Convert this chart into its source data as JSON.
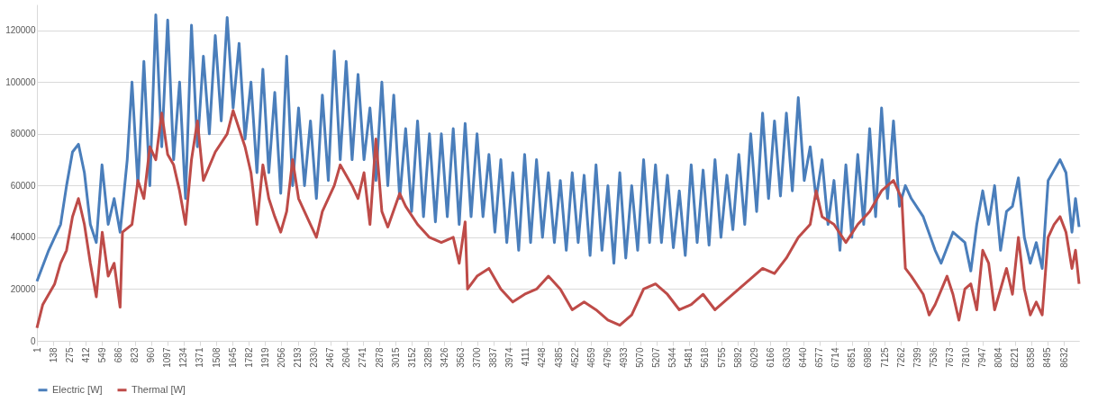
{
  "chart_data": {
    "type": "line",
    "xlim": [
      1,
      8760
    ],
    "ylim": [
      0,
      130000
    ],
    "xticks": [
      1,
      138,
      275,
      412,
      549,
      686,
      823,
      960,
      1097,
      1234,
      1371,
      1508,
      1645,
      1782,
      1919,
      2056,
      2193,
      2330,
      2467,
      2604,
      2741,
      2878,
      3015,
      3152,
      3289,
      3426,
      3563,
      3700,
      3837,
      3974,
      4111,
      4248,
      4385,
      4522,
      4659,
      4796,
      4933,
      5070,
      5207,
      5344,
      5481,
      5618,
      5755,
      5892,
      6029,
      6166,
      6303,
      6440,
      6577,
      6714,
      6851,
      6988,
      7125,
      7262,
      7399,
      7536,
      7673,
      7810,
      7947,
      8084,
      8221,
      8358,
      8495,
      8632
    ],
    "yticks": [
      0,
      20000,
      40000,
      60000,
      80000,
      100000,
      120000
    ],
    "grid": "y",
    "legend": "bottom",
    "marker": "none",
    "line_style": "solid",
    "series": [
      {
        "name": "Electric [W]",
        "color": "#4a7ebb",
        "x": [
          1,
          100,
          200,
          250,
          300,
          350,
          400,
          450,
          500,
          548,
          600,
          650,
          700,
          760,
          800,
          850,
          900,
          950,
          1000,
          1050,
          1100,
          1150,
          1200,
          1250,
          1300,
          1350,
          1400,
          1450,
          1500,
          1550,
          1600,
          1650,
          1700,
          1750,
          1800,
          1850,
          1900,
          1950,
          2000,
          2050,
          2100,
          2150,
          2200,
          2250,
          2300,
          2350,
          2400,
          2450,
          2500,
          2550,
          2600,
          2650,
          2700,
          2750,
          2800,
          2850,
          2900,
          2950,
          3000,
          3050,
          3100,
          3150,
          3200,
          3250,
          3300,
          3350,
          3400,
          3450,
          3500,
          3550,
          3600,
          3650,
          3700,
          3750,
          3800,
          3850,
          3900,
          3950,
          4000,
          4050,
          4100,
          4150,
          4200,
          4250,
          4300,
          4350,
          4400,
          4450,
          4500,
          4550,
          4600,
          4650,
          4700,
          4750,
          4800,
          4850,
          4900,
          4950,
          5000,
          5050,
          5100,
          5150,
          5200,
          5250,
          5300,
          5350,
          5400,
          5450,
          5500,
          5550,
          5600,
          5650,
          5700,
          5750,
          5800,
          5850,
          5900,
          5950,
          6000,
          6050,
          6100,
          6150,
          6200,
          6250,
          6300,
          6350,
          6400,
          6450,
          6500,
          6550,
          6600,
          6650,
          6700,
          6750,
          6800,
          6850,
          6900,
          6950,
          7000,
          7050,
          7100,
          7150,
          7200,
          7250,
          7300,
          7350,
          7450,
          7550,
          7600,
          7700,
          7800,
          7850,
          7900,
          7950,
          8000,
          8050,
          8100,
          8150,
          8200,
          8250,
          8300,
          8350,
          8400,
          8450,
          8500,
          8550,
          8600,
          8650,
          8700,
          8730,
          8760
        ],
        "values": [
          23000,
          35000,
          45000,
          60000,
          73000,
          76000,
          65000,
          45000,
          38000,
          68000,
          45000,
          55000,
          42000,
          70000,
          100000,
          60000,
          108000,
          60000,
          126000,
          75000,
          124000,
          70000,
          100000,
          55000,
          122000,
          75000,
          110000,
          80000,
          118000,
          85000,
          125000,
          90000,
          115000,
          78000,
          100000,
          65000,
          105000,
          65000,
          96000,
          57000,
          110000,
          60000,
          90000,
          60000,
          85000,
          55000,
          95000,
          62000,
          112000,
          70000,
          108000,
          70000,
          103000,
          70000,
          90000,
          62000,
          100000,
          60000,
          95000,
          55000,
          82000,
          50000,
          85000,
          48000,
          80000,
          46000,
          80000,
          48000,
          82000,
          45000,
          84000,
          48000,
          80000,
          48000,
          72000,
          42000,
          70000,
          38000,
          65000,
          35000,
          72000,
          38000,
          70000,
          40000,
          65000,
          38000,
          62000,
          35000,
          65000,
          38000,
          64000,
          33000,
          68000,
          35000,
          60000,
          30000,
          65000,
          32000,
          60000,
          35000,
          70000,
          38000,
          68000,
          38000,
          64000,
          36000,
          58000,
          33000,
          68000,
          38000,
          66000,
          37000,
          70000,
          40000,
          64000,
          43000,
          72000,
          45000,
          80000,
          50000,
          88000,
          55000,
          85000,
          56000,
          88000,
          58000,
          94000,
          62000,
          75000,
          55000,
          70000,
          45000,
          62000,
          35000,
          68000,
          40000,
          72000,
          45000,
          82000,
          48000,
          90000,
          55000,
          85000,
          52000,
          60000,
          55000,
          48000,
          35000,
          30000,
          42000,
          38000,
          27000,
          45000,
          58000,
          45000,
          60000,
          35000,
          50000,
          52000,
          63000,
          40000,
          30000,
          38000,
          28000,
          62000,
          66000,
          70000,
          65000,
          42000,
          55000,
          44000
        ]
      },
      {
        "name": "Thermal [W]",
        "color": "#be4b48",
        "x": [
          1,
          50,
          150,
          200,
          250,
          300,
          350,
          400,
          450,
          500,
          550,
          600,
          650,
          700,
          720,
          800,
          850,
          900,
          950,
          1000,
          1050,
          1100,
          1150,
          1200,
          1250,
          1300,
          1350,
          1400,
          1500,
          1600,
          1650,
          1750,
          1800,
          1850,
          1900,
          1950,
          2000,
          2050,
          2100,
          2150,
          2200,
          2300,
          2350,
          2400,
          2500,
          2550,
          2650,
          2700,
          2750,
          2800,
          2850,
          2900,
          2950,
          3050,
          3100,
          3200,
          3300,
          3400,
          3500,
          3550,
          3600,
          3620,
          3700,
          3800,
          3900,
          4000,
          4100,
          4200,
          4300,
          4400,
          4500,
          4600,
          4700,
          4800,
          4900,
          5000,
          5100,
          5200,
          5300,
          5400,
          5500,
          5600,
          5700,
          5800,
          5900,
          6000,
          6100,
          6200,
          6300,
          6400,
          6500,
          6550,
          6600,
          6700,
          6800,
          6900,
          7000,
          7100,
          7200,
          7270,
          7300,
          7350,
          7450,
          7500,
          7550,
          7650,
          7700,
          7750,
          7800,
          7850,
          7900,
          7950,
          8000,
          8050,
          8100,
          8150,
          8200,
          8250,
          8300,
          8350,
          8400,
          8450,
          8500,
          8550,
          8600,
          8650,
          8700,
          8730,
          8760
        ],
        "values": [
          5000,
          14000,
          22000,
          30000,
          35000,
          48000,
          55000,
          45000,
          30000,
          17000,
          42000,
          25000,
          30000,
          13000,
          42000,
          45000,
          62000,
          55000,
          75000,
          70000,
          88000,
          72000,
          68000,
          58000,
          45000,
          70000,
          85000,
          62000,
          73000,
          80000,
          89000,
          75000,
          65000,
          45000,
          68000,
          55000,
          48000,
          42000,
          50000,
          70000,
          55000,
          45000,
          40000,
          50000,
          60000,
          68000,
          60000,
          55000,
          65000,
          45000,
          78000,
          50000,
          44000,
          57000,
          52000,
          45000,
          40000,
          38000,
          40000,
          30000,
          46000,
          20000,
          25000,
          28000,
          20000,
          15000,
          18000,
          20000,
          25000,
          20000,
          12000,
          15000,
          12000,
          8000,
          6000,
          10000,
          20000,
          22000,
          18000,
          12000,
          14000,
          18000,
          12000,
          16000,
          20000,
          24000,
          28000,
          26000,
          32000,
          40000,
          45000,
          58000,
          48000,
          45000,
          38000,
          45000,
          50000,
          58000,
          62000,
          55000,
          28000,
          25000,
          18000,
          10000,
          14000,
          25000,
          18000,
          8000,
          20000,
          22000,
          12000,
          35000,
          30000,
          12000,
          20000,
          28000,
          18000,
          40000,
          20000,
          10000,
          15000,
          10000,
          40000,
          45000,
          48000,
          42000,
          28000,
          35000,
          22000
        ]
      }
    ]
  }
}
